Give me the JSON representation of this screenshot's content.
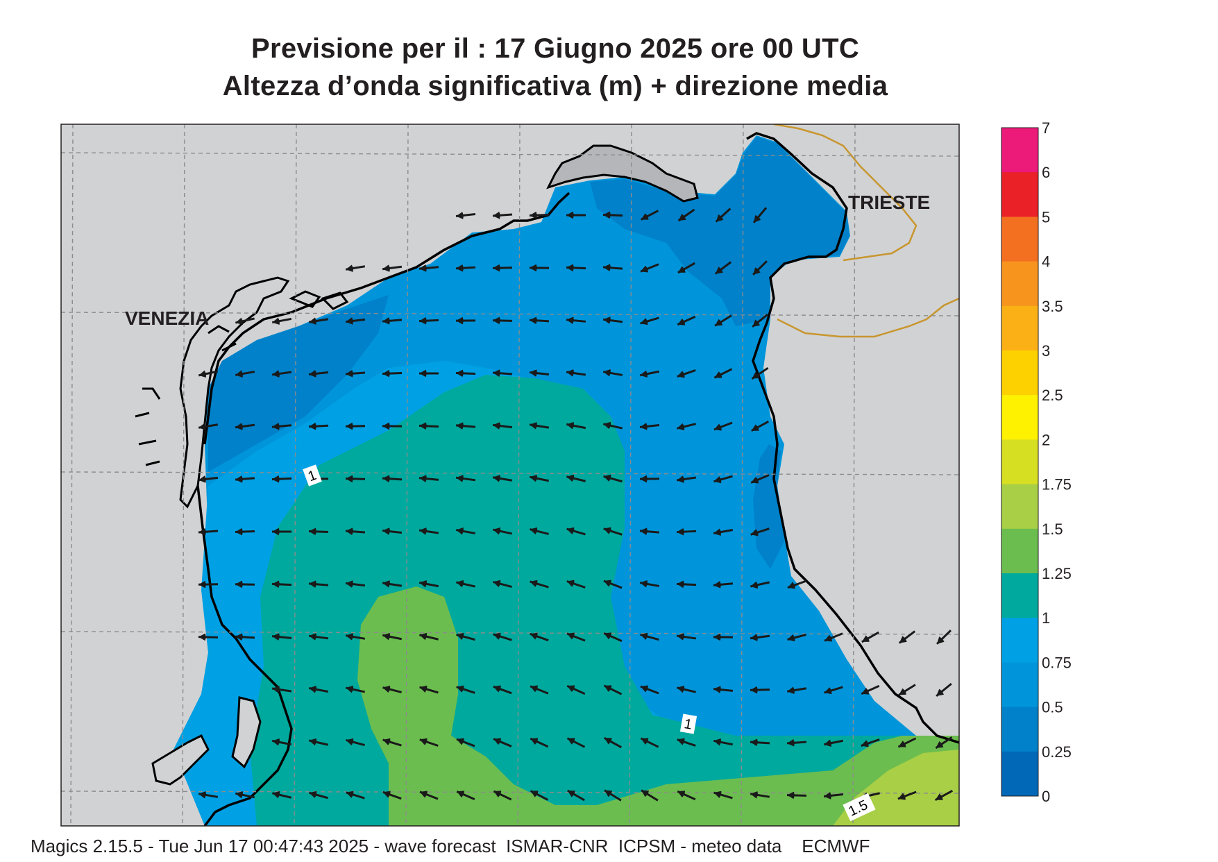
{
  "title": {
    "line1": "Previsione per il  :  17   Giugno  2025   ore 00 UTC",
    "line2": "Altezza d’onda significativa (m) + direzione media"
  },
  "map": {
    "cities": [
      "VENEZIA",
      "TRIESTE"
    ],
    "contour_labels": [
      "1",
      "1",
      "1.5"
    ],
    "land_color": "#d1d2d4",
    "coast_color": "#000000",
    "border_color": "#c8962e",
    "arrow_direction": "toward south-west (mean wave direction)"
  },
  "colorbar": {
    "levels": [
      "7",
      "6",
      "5",
      "4",
      "3.5",
      "3",
      "2.5",
      "2",
      "1.75",
      "1.5",
      "1.25",
      "1",
      "0.75",
      "0.5",
      "0.25",
      "0"
    ],
    "colors": [
      "#ec1a78",
      "#ea2127",
      "#f37021",
      "#f7941d",
      "#fbb016",
      "#fdd100",
      "#fff200",
      "#d7df23",
      "#a8cf45",
      "#6cbd4f",
      "#00a99d",
      "#00a1e4",
      "#0095da",
      "#0081c9",
      "#0068b7"
    ]
  },
  "footer": "Magics 2.15.5 - Tue Jun 17 00:47:43 2025 - wave forecast  ISMAR-CNR  ICPSM - meteo data    ECMWF"
}
